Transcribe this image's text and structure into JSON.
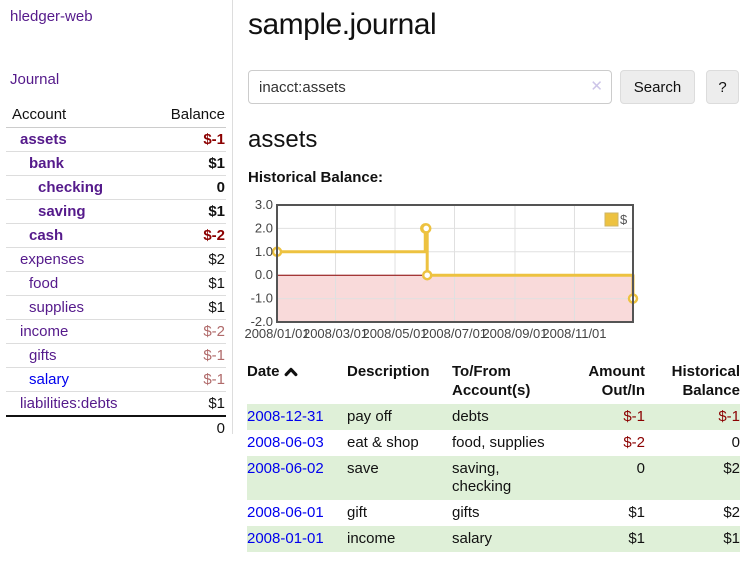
{
  "app": {
    "brand": "hledger-web"
  },
  "colors": {
    "link_visited_purple": "#551A8B",
    "link_unvisited_blue": "#0000EE",
    "negative_strong": "#8b0000",
    "negative_soft": "#b06a6a",
    "row_stripe_green": "#dff0d8",
    "chart_gold": "#edc240",
    "chart_negative_fill": "#f9dada",
    "chart_zero_line": "#8b0000"
  },
  "sidebar": {
    "nav": {
      "journal_label": "Journal"
    },
    "accounts_table": {
      "col_account": "Account",
      "col_balance": "Balance",
      "rows": [
        {
          "name": "assets",
          "level": 0,
          "bold": true,
          "link": "visited",
          "balance": "$-1",
          "balance_style": "neg-strong"
        },
        {
          "name": "bank",
          "level": 1,
          "bold": true,
          "link": "visited",
          "balance": "$1",
          "balance_style": "pos"
        },
        {
          "name": "checking",
          "level": 2,
          "bold": true,
          "link": "visited",
          "balance": "0",
          "balance_style": "pos"
        },
        {
          "name": "saving",
          "level": 2,
          "bold": true,
          "link": "visited",
          "balance": "$1",
          "balance_style": "pos"
        },
        {
          "name": "cash",
          "level": 1,
          "bold": true,
          "link": "visited",
          "balance": "$-2",
          "balance_style": "neg-strong"
        },
        {
          "name": "expenses",
          "level": 0,
          "bold": false,
          "link": "visited",
          "balance": "$2",
          "balance_style": "pos"
        },
        {
          "name": "food",
          "level": 1,
          "bold": false,
          "link": "visited",
          "balance": "$1",
          "balance_style": "pos"
        },
        {
          "name": "supplies",
          "level": 1,
          "bold": false,
          "link": "visited",
          "balance": "$1",
          "balance_style": "pos"
        },
        {
          "name": "income",
          "level": 0,
          "bold": false,
          "link": "visited",
          "balance": "$-2",
          "balance_style": "neg-soft"
        },
        {
          "name": "gifts",
          "level": 1,
          "bold": false,
          "link": "visited",
          "balance": "$-1",
          "balance_style": "neg-soft"
        },
        {
          "name": "salary",
          "level": 1,
          "bold": false,
          "link": "unvisited",
          "balance": "$-1",
          "balance_style": "neg-soft"
        },
        {
          "name": "liabilities:debts",
          "level": 0,
          "bold": false,
          "link": "visited",
          "balance": "$1",
          "balance_style": "pos"
        }
      ],
      "total": "0"
    }
  },
  "header": {
    "title": "sample.journal"
  },
  "search": {
    "value": "inacct:assets",
    "clear_icon": "✕",
    "button_label": "Search",
    "help_label": "?"
  },
  "account_page": {
    "heading": "assets",
    "chart_label": "Historical Balance:"
  },
  "chart_data": {
    "type": "line",
    "title": "Historical Balance",
    "steps": true,
    "legend_position": "top-right",
    "legend": [
      {
        "label": "$",
        "color": "#edc240"
      }
    ],
    "xlim": [
      "2008-01-01",
      "2008-12-31"
    ],
    "x_span_days": 365,
    "ylim": [
      -2,
      3
    ],
    "y_ticks": [
      {
        "value": 3,
        "label": "3.0"
      },
      {
        "value": 2,
        "label": "2.0"
      },
      {
        "value": 1,
        "label": "1.0"
      },
      {
        "value": 0,
        "label": "0.0"
      },
      {
        "value": -1,
        "label": "-1.0"
      },
      {
        "value": -2,
        "label": "-2.0"
      }
    ],
    "x_ticks": [
      {
        "day": 0,
        "label": "2008/01/01"
      },
      {
        "day": 60,
        "label": "2008/03/01"
      },
      {
        "day": 121,
        "label": "2008/05/01"
      },
      {
        "day": 182,
        "label": "2008/07/01"
      },
      {
        "day": 244,
        "label": "2008/09/01"
      },
      {
        "day": 305,
        "label": "2008/11/01"
      }
    ],
    "series": [
      {
        "name": "$",
        "color": "#edc240",
        "points": [
          {
            "date": "2008-01-01",
            "day": 0,
            "value": 1
          },
          {
            "date": "2008-06-01",
            "day": 152,
            "value": 2
          },
          {
            "date": "2008-06-02",
            "day": 153,
            "value": 2
          },
          {
            "date": "2008-06-03",
            "day": 154,
            "value": 0
          },
          {
            "date": "2008-12-31",
            "day": 365,
            "value": -1
          }
        ]
      }
    ],
    "grid": true,
    "negative_region_fill": "#f9dada",
    "zero_line_color": "#8b0000"
  },
  "register_table": {
    "columns": {
      "date": "Date",
      "description": "Description",
      "accounts": "To/From Account(s)",
      "amount": "Amount Out/In",
      "balance": "Historical Balance"
    },
    "sort": {
      "column": "date",
      "direction": "ascending"
    },
    "rows": [
      {
        "date": "2008-12-31",
        "description": "pay off",
        "accounts": "debts",
        "amount": "$-1",
        "amount_style": "neg-strong",
        "balance": "$-1",
        "balance_style": "neg-strong"
      },
      {
        "date": "2008-06-03",
        "description": "eat & shop",
        "accounts": "food, supplies",
        "amount": "$-2",
        "amount_style": "neg-strong",
        "balance": "0",
        "balance_style": "pos"
      },
      {
        "date": "2008-06-02",
        "description": "save",
        "accounts": "saving, checking",
        "amount": "0",
        "amount_style": "pos",
        "balance": "$2",
        "balance_style": "pos"
      },
      {
        "date": "2008-06-01",
        "description": "gift",
        "accounts": "gifts",
        "amount": "$1",
        "amount_style": "pos",
        "balance": "$2",
        "balance_style": "pos"
      },
      {
        "date": "2008-01-01",
        "description": "income",
        "accounts": "salary",
        "amount": "$1",
        "amount_style": "pos",
        "balance": "$1",
        "balance_style": "pos"
      }
    ]
  }
}
